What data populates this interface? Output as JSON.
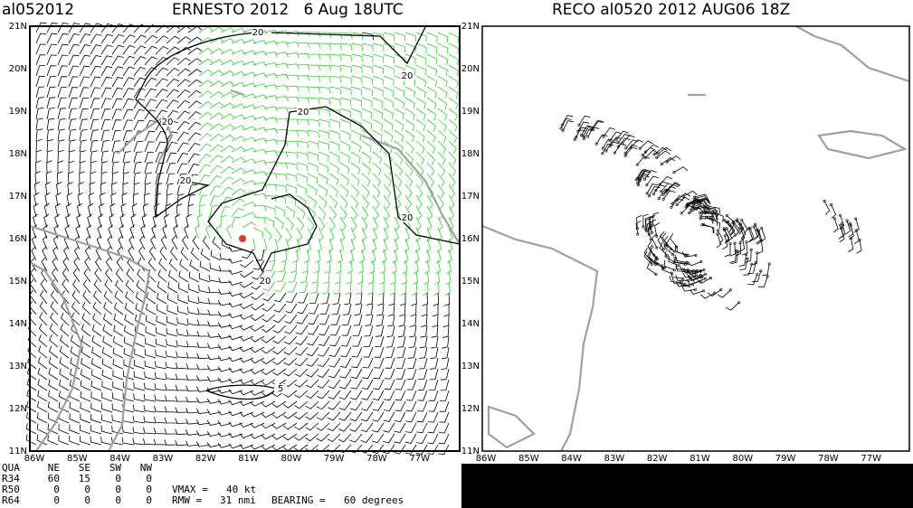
{
  "left_panel": {
    "storm_id": "al052012",
    "title": "ERNESTO 2012   6 Aug 18UTC",
    "lat_labels": [
      "21N",
      "20N",
      "19N",
      "18N",
      "17N",
      "16N",
      "15N",
      "14N",
      "13N",
      "12N",
      "11N"
    ],
    "lon_labels": [
      "86W",
      "85W",
      "84W",
      "83W",
      "82W",
      "81W",
      "80W",
      "79W",
      "78W",
      "77W"
    ],
    "contour_labels": [
      "20",
      "20",
      "20",
      "20",
      "20",
      "20",
      "20",
      "5"
    ]
  },
  "right_panel": {
    "title": "RECO al0520 2012 AUG06 18Z",
    "lat_labels": [
      "21N",
      "20N",
      "19N",
      "18N",
      "17N",
      "16N",
      "15N",
      "14N",
      "13N",
      "12N",
      "11N"
    ],
    "lon_labels": [
      "86W",
      "85W",
      "84W",
      "83W",
      "82W",
      "81W",
      "80W",
      "79W",
      "78W",
      "77W"
    ]
  },
  "table": {
    "header": [
      "QUA",
      "NE",
      "SE",
      "SW",
      "NW"
    ],
    "rows": [
      [
        "R34",
        60,
        15,
        0,
        0
      ],
      [
        "R50",
        0,
        0,
        0,
        0
      ],
      [
        "R64",
        0,
        0,
        0,
        0
      ]
    ],
    "vmax_label": "VMAX =",
    "vmax_value": "40 kt",
    "rmw_label": "RMW =",
    "rmw_value": "31 nmi",
    "bearing_label": "BEARING =",
    "bearing_value": "60 degrees"
  }
}
